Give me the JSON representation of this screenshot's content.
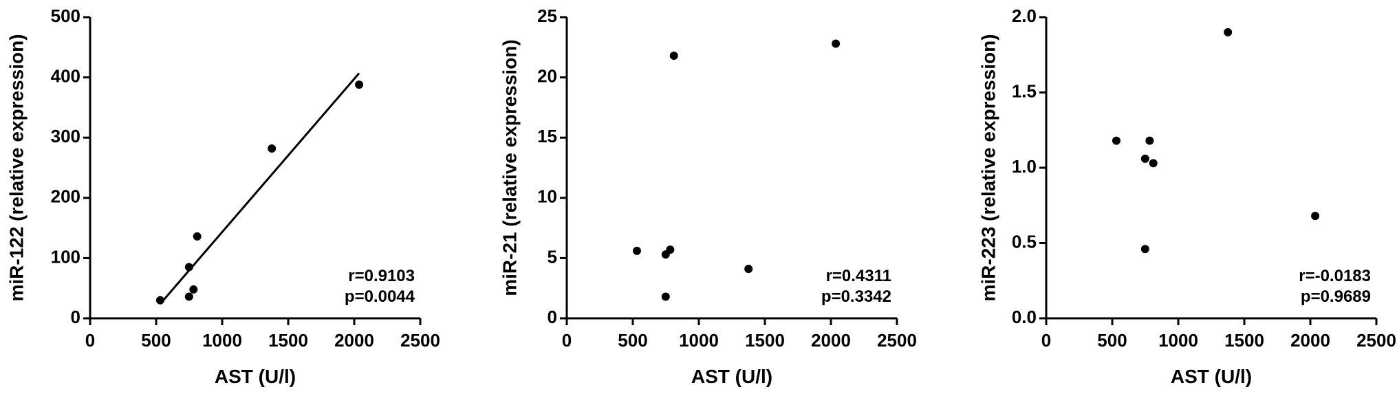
{
  "chart_data": [
    {
      "type": "scatter",
      "x_label": "AST (U/l)",
      "y_label": "miR-122 (relative expression)",
      "x": [
        531,
        749,
        749,
        783,
        811,
        1376,
        2037
      ],
      "values": [
        30,
        85,
        36,
        48,
        136,
        282,
        388
      ],
      "fit_line": {
        "x": [
          531,
          2037
        ],
        "y": [
          24,
          407
        ]
      },
      "xlim": [
        0,
        2500
      ],
      "ylim": [
        0,
        500
      ],
      "xticks": [
        0,
        500,
        1000,
        1500,
        2000,
        2500
      ],
      "yticks": [
        0,
        100,
        200,
        300,
        400,
        500
      ],
      "annotations": [
        "r=0.9103",
        "p=0.0044"
      ],
      "color": "#000000"
    },
    {
      "type": "scatter",
      "x_label": "AST (U/l)",
      "y_label": "miR-21 (relative expression)",
      "x": [
        531,
        749,
        749,
        783,
        811,
        1376,
        2037
      ],
      "values": [
        5.6,
        5.3,
        1.8,
        5.7,
        21.8,
        4.1,
        22.8
      ],
      "xlim": [
        0,
        2500
      ],
      "ylim": [
        0,
        25
      ],
      "xticks": [
        0,
        500,
        1000,
        1500,
        2000,
        2500
      ],
      "yticks": [
        0,
        5,
        10,
        15,
        20,
        25
      ],
      "annotations": [
        "r=0.4311",
        "p=0.3342"
      ],
      "color": "#000000"
    },
    {
      "type": "scatter",
      "x_label": "AST (U/l)",
      "y_label": "miR-223 (relative expression)",
      "x": [
        531,
        749,
        749,
        783,
        811,
        1376,
        2037
      ],
      "values": [
        1.18,
        1.06,
        0.46,
        1.18,
        1.03,
        1.9,
        0.68
      ],
      "xlim": [
        0,
        2500
      ],
      "ylim": [
        0,
        2
      ],
      "xticks": [
        0,
        500,
        1000,
        1500,
        2000,
        2500
      ],
      "yticks": [
        {
          "value": 0,
          "label": "0.0"
        },
        0.5,
        {
          "value": 1,
          "label": "1.0"
        },
        1.5,
        {
          "value": 2,
          "label": "2.0"
        }
      ],
      "annotations": [
        "r=-0.0183",
        "p=0.9689"
      ],
      "color": "#000000"
    }
  ]
}
